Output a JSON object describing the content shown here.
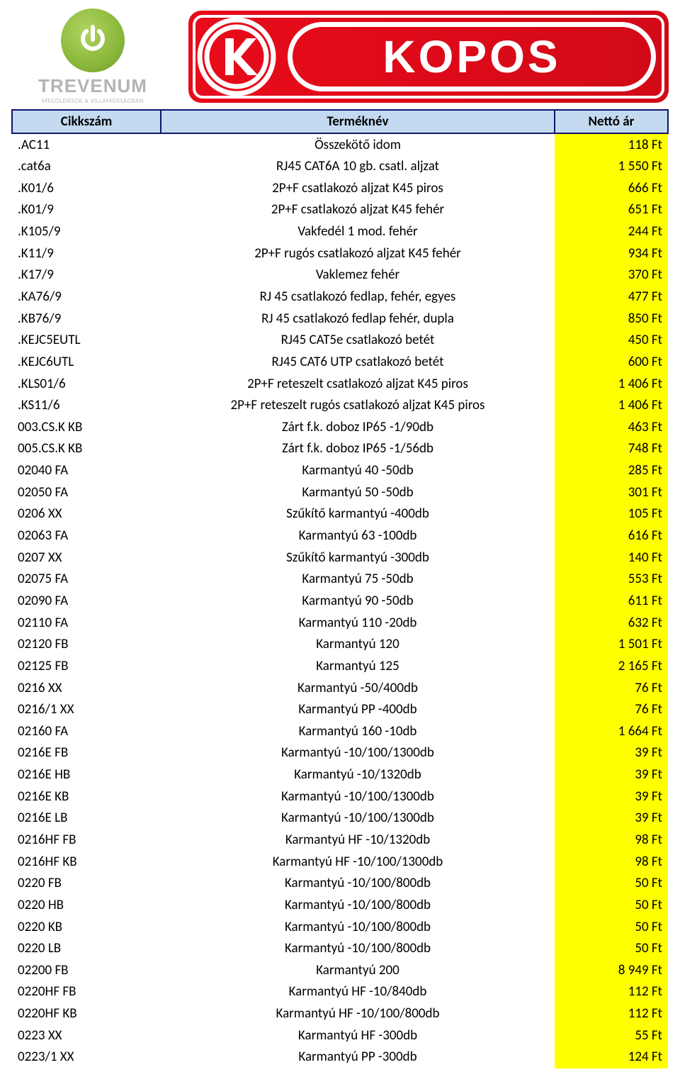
{
  "logos": {
    "trevenum_text": "TREVENUM",
    "trevenum_sub": "MEGOLDÁSOK A VILLAMOSSÁGBAN",
    "kopos_text": "KOPOS"
  },
  "table": {
    "headers": {
      "code": "Cikkszám",
      "name": "Terméknév",
      "price": "Nettó ár"
    },
    "header_bg": "#c3daf0",
    "header_border": "#12146a",
    "price_bg": "#ffff00",
    "rows": [
      {
        "code": ".AC11",
        "name": "Összekötő idom",
        "price": "118 Ft"
      },
      {
        "code": ".cat6a",
        "name": "RJ45 CAT6A 10 gb. csatl. aljzat",
        "price": "1 550 Ft"
      },
      {
        "code": ".K01/6",
        "name": "2P+F csatlakozó aljzat K45 piros",
        "price": "666 Ft"
      },
      {
        "code": ".K01/9",
        "name": "2P+F csatlakozó aljzat K45 fehér",
        "price": "651 Ft"
      },
      {
        "code": ".K105/9",
        "name": "Vakfedél 1 mod. fehér",
        "price": "244 Ft"
      },
      {
        "code": ".K11/9",
        "name": "2P+F rugós csatlakozó aljzat K45 fehér",
        "price": "934 Ft"
      },
      {
        "code": ".K17/9",
        "name": "Vaklemez fehér",
        "price": "370 Ft"
      },
      {
        "code": ".KA76/9",
        "name": "RJ 45 csatlakozó fedlap, fehér, egyes",
        "price": "477 Ft"
      },
      {
        "code": ".KB76/9",
        "name": "RJ 45 csatlakozó fedlap fehér, dupla",
        "price": "850 Ft"
      },
      {
        "code": ".KEJC5EUTL",
        "name": "RJ45 CAT5e csatlakozó betét",
        "price": "450 Ft"
      },
      {
        "code": ".KEJC6UTL",
        "name": "RJ45 CAT6 UTP csatlakozó betét",
        "price": "600 Ft"
      },
      {
        "code": ".KLS01/6",
        "name": "2P+F reteszelt csatlakozó aljzat K45 piros",
        "price": "1 406 Ft"
      },
      {
        "code": ".KS11/6",
        "name": "2P+F reteszelt rugós csatlakozó aljzat K45 piros",
        "price": "1 406 Ft"
      },
      {
        "code": "003.CS.K KB",
        "name": "Zárt f.k. doboz IP65 -1/90db",
        "price": "463 Ft"
      },
      {
        "code": "005.CS.K KB",
        "name": "Zárt f.k. doboz IP65 -1/56db",
        "price": "748 Ft"
      },
      {
        "code": "02040 FA",
        "name": "Karmantyú 40 -50db",
        "price": "285 Ft"
      },
      {
        "code": "02050 FA",
        "name": "Karmantyú 50 -50db",
        "price": "301 Ft"
      },
      {
        "code": "0206 XX",
        "name": "Szűkítő karmantyú -400db",
        "price": "105 Ft"
      },
      {
        "code": "02063 FA",
        "name": "Karmantyú 63 -100db",
        "price": "616 Ft"
      },
      {
        "code": "0207 XX",
        "name": "Szűkítő karmantyú -300db",
        "price": "140 Ft"
      },
      {
        "code": "02075 FA",
        "name": "Karmantyú 75 -50db",
        "price": "553 Ft"
      },
      {
        "code": "02090 FA",
        "name": "Karmantyú 90 -50db",
        "price": "611 Ft"
      },
      {
        "code": "02110 FA",
        "name": "Karmantyú 110 -20db",
        "price": "632 Ft"
      },
      {
        "code": "02120 FB",
        "name": "Karmantyú 120",
        "price": "1 501 Ft"
      },
      {
        "code": "02125 FB",
        "name": "Karmantyú 125",
        "price": "2 165 Ft"
      },
      {
        "code": "0216 XX",
        "name": "Karmantyú -50/400db",
        "price": "76 Ft"
      },
      {
        "code": "0216/1 XX",
        "name": "Karmantyú PP -400db",
        "price": "76 Ft"
      },
      {
        "code": "02160 FA",
        "name": "Karmantyú 160 -10db",
        "price": "1 664 Ft"
      },
      {
        "code": "0216E FB",
        "name": "Karmantyú -10/100/1300db",
        "price": "39 Ft"
      },
      {
        "code": "0216E HB",
        "name": "Karmantyú -10/1320db",
        "price": "39 Ft"
      },
      {
        "code": "0216E KB",
        "name": "Karmantyú -10/100/1300db",
        "price": "39 Ft"
      },
      {
        "code": "0216E LB",
        "name": "Karmantyú -10/100/1300db",
        "price": "39 Ft"
      },
      {
        "code": "0216HF FB",
        "name": "Karmantyú HF -10/1320db",
        "price": "98 Ft"
      },
      {
        "code": "0216HF KB",
        "name": "Karmantyú HF -10/100/1300db",
        "price": "98 Ft"
      },
      {
        "code": "0220 FB",
        "name": "Karmantyú -10/100/800db",
        "price": "50 Ft"
      },
      {
        "code": "0220 HB",
        "name": "Karmantyú -10/100/800db",
        "price": "50 Ft"
      },
      {
        "code": "0220 KB",
        "name": "Karmantyú -10/100/800db",
        "price": "50 Ft"
      },
      {
        "code": "0220 LB",
        "name": "Karmantyú -10/100/800db",
        "price": "50 Ft"
      },
      {
        "code": "02200 FB",
        "name": "Karmantyú 200",
        "price": "8 949 Ft"
      },
      {
        "code": "0220HF FB",
        "name": "Karmantyú HF -10/840db",
        "price": "112 Ft"
      },
      {
        "code": "0220HF KB",
        "name": "Karmantyú HF -10/100/800db",
        "price": "112 Ft"
      },
      {
        "code": "0223 XX",
        "name": "Karmantyú HF -300db",
        "price": "55 Ft"
      },
      {
        "code": "0223/1 XX",
        "name": "Karmantyú PP -300db",
        "price": "124 Ft"
      }
    ]
  }
}
